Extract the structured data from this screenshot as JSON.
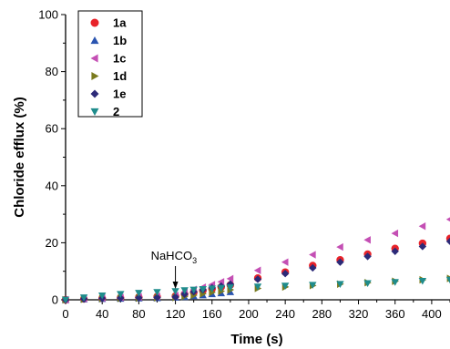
{
  "chart_data": {
    "type": "scatter",
    "title": "",
    "xlabel": "Time (s)",
    "ylabel": "Chloride efflux (%)",
    "xlim": [
      0,
      420
    ],
    "ylim": [
      0,
      100
    ],
    "xticks": [
      0,
      40,
      80,
      120,
      160,
      200,
      240,
      280,
      320,
      360,
      400
    ],
    "yticks": [
      0,
      20,
      40,
      60,
      80,
      100
    ],
    "legend_position": "top-left",
    "grid": false,
    "series": [
      {
        "name": "1a",
        "color": "#e8232a",
        "marker": "circle",
        "x": [
          0,
          20,
          40,
          60,
          80,
          100,
          120,
          130,
          140,
          150,
          160,
          170,
          180,
          210,
          240,
          270,
          300,
          330,
          360,
          390,
          420
        ],
        "y": [
          0,
          0.3,
          0.5,
          0.7,
          0.9,
          1.1,
          1.3,
          2.0,
          2.6,
          3.2,
          3.8,
          4.5,
          5.2,
          7.6,
          9.7,
          12.0,
          14.0,
          16.0,
          18.0,
          19.8,
          21.5
        ]
      },
      {
        "name": "1b",
        "color": "#2a54b0",
        "marker": "triangle-up",
        "x": [
          0,
          20,
          40,
          60,
          80,
          100,
          120,
          130,
          140,
          150,
          160,
          170,
          180
        ],
        "y": [
          0,
          0.2,
          0.3,
          0.4,
          0.5,
          0.6,
          0.8,
          1.0,
          1.3,
          1.6,
          2.0,
          2.3,
          2.7
        ]
      },
      {
        "name": "1c",
        "color": "#c44fb4",
        "marker": "triangle-left",
        "x": [
          0,
          20,
          40,
          60,
          80,
          100,
          120,
          130,
          140,
          150,
          160,
          170,
          180,
          210,
          240,
          270,
          300,
          330,
          360,
          390,
          420
        ],
        "y": [
          0,
          0.4,
          0.6,
          0.8,
          1.0,
          1.2,
          1.5,
          2.7,
          3.6,
          4.4,
          5.3,
          6.3,
          7.4,
          10.3,
          13.2,
          15.8,
          18.5,
          21.0,
          23.3,
          25.8,
          28.2
        ]
      },
      {
        "name": "1d",
        "color": "#7a7a1e",
        "marker": "triangle-right",
        "x": [
          0,
          20,
          40,
          60,
          80,
          100,
          120,
          130,
          140,
          150,
          160,
          170,
          180,
          210,
          240,
          270,
          300,
          330,
          360,
          390,
          420
        ],
        "y": [
          0,
          0.2,
          0.4,
          0.5,
          0.6,
          0.7,
          0.8,
          1.2,
          1.6,
          2.1,
          2.6,
          3.0,
          3.5,
          4.0,
          4.5,
          5.0,
          5.5,
          6.0,
          6.5,
          7.0,
          7.5
        ]
      },
      {
        "name": "1e",
        "color": "#2c2a78",
        "marker": "diamond",
        "x": [
          0,
          20,
          40,
          60,
          80,
          100,
          120,
          130,
          140,
          150,
          160,
          170,
          180,
          210,
          240,
          270,
          300,
          330,
          360,
          390,
          420
        ],
        "y": [
          0,
          0.3,
          0.5,
          0.6,
          0.7,
          0.8,
          1.0,
          2.0,
          2.8,
          3.5,
          4.2,
          4.8,
          5.5,
          7.2,
          9.2,
          11.2,
          13.2,
          15.2,
          17.0,
          18.7,
          20.5
        ]
      },
      {
        "name": "2",
        "color": "#1f8c8c",
        "marker": "triangle-down",
        "x": [
          0,
          20,
          40,
          60,
          80,
          100,
          120,
          130,
          140,
          150,
          160,
          170,
          180,
          210,
          240,
          270,
          300,
          330,
          360,
          390,
          420
        ],
        "y": [
          0,
          0.8,
          1.5,
          2.0,
          2.4,
          2.7,
          3.0,
          3.3,
          3.5,
          3.7,
          3.9,
          4.1,
          4.3,
          4.6,
          4.9,
          5.2,
          5.5,
          5.8,
          6.2,
          6.6,
          7.0
        ]
      }
    ],
    "annotations": [
      {
        "text": "NaHCO",
        "subscript": "3",
        "x": 120,
        "arrow": true
      }
    ]
  }
}
